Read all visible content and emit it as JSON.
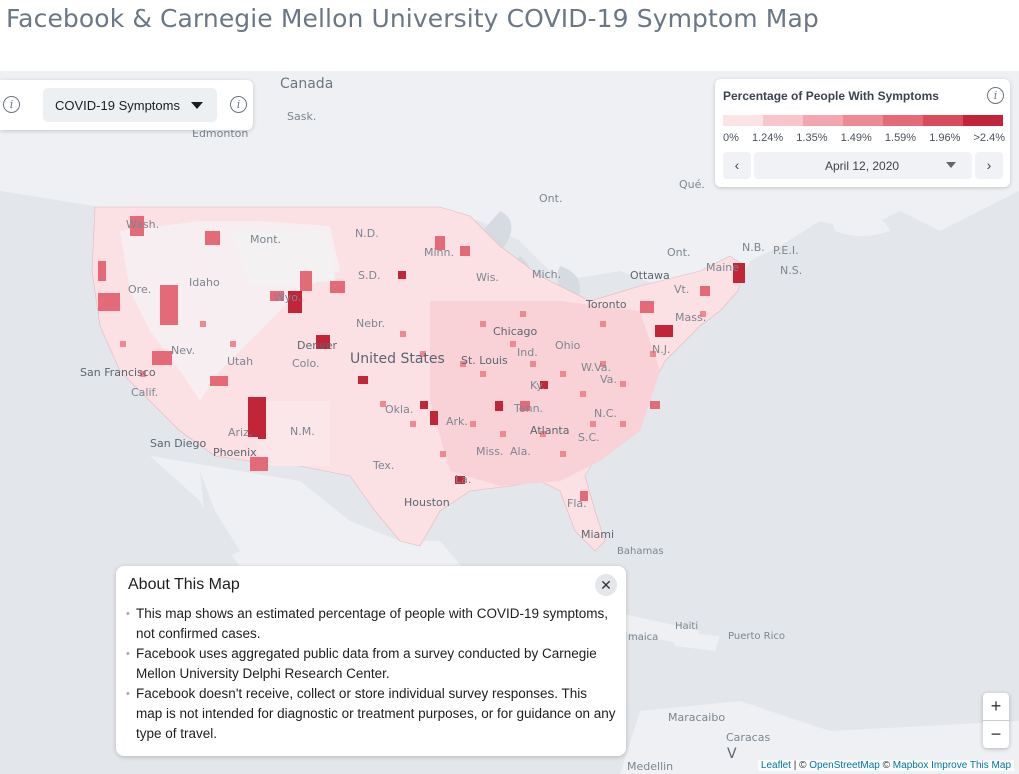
{
  "page": {
    "title": "Facebook & Carnegie Mellon University COVID-19 Symptom Map"
  },
  "layer_control": {
    "selected": "COVID-19 Symptoms"
  },
  "legend": {
    "title": "Percentage of People With Symptoms",
    "ticks": [
      "0%",
      "1.24%",
      "1.35%",
      "1.49%",
      "1.59%",
      "1.96%",
      ">2.4%"
    ],
    "colors": [
      "#fde3e6",
      "#f9c5cb",
      "#f4a6ae",
      "#ee8993",
      "#e46a77",
      "#d94a5a",
      "#c22537"
    ],
    "date": "April 12, 2020",
    "prev_glyph": "‹",
    "next_glyph": "›"
  },
  "map_labels": [
    {
      "text": "Canada",
      "kind": "country"
    },
    {
      "text": "Sask.",
      "kind": "region"
    },
    {
      "text": "Edmonton",
      "kind": "region"
    },
    {
      "text": "Ont.",
      "kind": "region"
    },
    {
      "text": "Qué.",
      "kind": "region"
    },
    {
      "text": "N.B.",
      "kind": "region"
    },
    {
      "text": "P.E.I.",
      "kind": "region"
    },
    {
      "text": "N.S.",
      "kind": "region"
    },
    {
      "text": "Wash.",
      "kind": "region"
    },
    {
      "text": "Mont.",
      "kind": "region"
    },
    {
      "text": "N.D.",
      "kind": "region"
    },
    {
      "text": "Minn.",
      "kind": "region"
    },
    {
      "text": "Maine",
      "kind": "region"
    },
    {
      "text": "Ottawa",
      "kind": "city"
    },
    {
      "text": "Idaho",
      "kind": "region"
    },
    {
      "text": "S.D.",
      "kind": "region"
    },
    {
      "text": "Wis.",
      "kind": "region"
    },
    {
      "text": "Mich.",
      "kind": "region"
    },
    {
      "text": "Vt.",
      "kind": "region"
    },
    {
      "text": "Ore.",
      "kind": "region"
    },
    {
      "text": "Wyo.",
      "kind": "region"
    },
    {
      "text": "Toronto",
      "kind": "city"
    },
    {
      "text": "Mass.",
      "kind": "region"
    },
    {
      "text": "Nebr.",
      "kind": "region"
    },
    {
      "text": "Chicago",
      "kind": "city"
    },
    {
      "text": "Nev.",
      "kind": "region"
    },
    {
      "text": "Denver",
      "kind": "city"
    },
    {
      "text": "Ohio",
      "kind": "region"
    },
    {
      "text": "N.J.",
      "kind": "region"
    },
    {
      "text": "Ind.",
      "kind": "region"
    },
    {
      "text": "United States",
      "kind": "big"
    },
    {
      "text": "St. Louis",
      "kind": "city"
    },
    {
      "text": "Utah",
      "kind": "region"
    },
    {
      "text": "Colo.",
      "kind": "region"
    },
    {
      "text": "W.Va.",
      "kind": "region"
    },
    {
      "text": "San Francisco",
      "kind": "city"
    },
    {
      "text": "Va.",
      "kind": "region"
    },
    {
      "text": "Calif.",
      "kind": "region"
    },
    {
      "text": "Ky.",
      "kind": "region"
    },
    {
      "text": "Okla.",
      "kind": "region"
    },
    {
      "text": "Tenn.",
      "kind": "region"
    },
    {
      "text": "N.C.",
      "kind": "region"
    },
    {
      "text": "Ark.",
      "kind": "region"
    },
    {
      "text": "Ariz.",
      "kind": "region"
    },
    {
      "text": "N.M.",
      "kind": "region"
    },
    {
      "text": "Atlanta",
      "kind": "city"
    },
    {
      "text": "S.C.",
      "kind": "region"
    },
    {
      "text": "San Diego",
      "kind": "city"
    },
    {
      "text": "Miss.",
      "kind": "region"
    },
    {
      "text": "Ala.",
      "kind": "region"
    },
    {
      "text": "Phoenix",
      "kind": "city"
    },
    {
      "text": "Tex.",
      "kind": "region"
    },
    {
      "text": "La.",
      "kind": "region"
    },
    {
      "text": "Houston",
      "kind": "city"
    },
    {
      "text": "Fla.",
      "kind": "region"
    },
    {
      "text": "Miami",
      "kind": "city"
    },
    {
      "text": "Bahamas",
      "kind": "region"
    },
    {
      "text": "Haiti",
      "kind": "region"
    },
    {
      "text": "Puerto Rico",
      "kind": "region"
    },
    {
      "text": "maica",
      "kind": "region"
    },
    {
      "text": "Maracaibo",
      "kind": "region"
    },
    {
      "text": "Caracas",
      "kind": "region"
    },
    {
      "text": "Medellin",
      "kind": "region"
    },
    {
      "text": "V",
      "kind": "big"
    },
    {
      "text": "Ont.",
      "kind": "region"
    }
  ],
  "about": {
    "title": "About This Map",
    "close_glyph": "✕",
    "items": [
      "This map shows an estimated percentage of people with COVID-19 symptoms, not confirmed cases.",
      "Facebook uses aggregated public data from a survey conducted by Carnegie Mellon University Delphi Research Center.",
      "Facebook doesn't receive, collect or store individual survey responses. This map is not intended for diagnostic or treatment purposes, or for guidance on any type of travel."
    ]
  },
  "zoom": {
    "in_glyph": "+",
    "out_glyph": "−"
  },
  "attribution": {
    "leaflet": "Leaflet",
    "osm_prefix": " | © ",
    "osm": "OpenStreetMap",
    "mapbox_prefix": " © ",
    "mapbox": "Mapbox",
    "improve": "Improve This Map"
  }
}
